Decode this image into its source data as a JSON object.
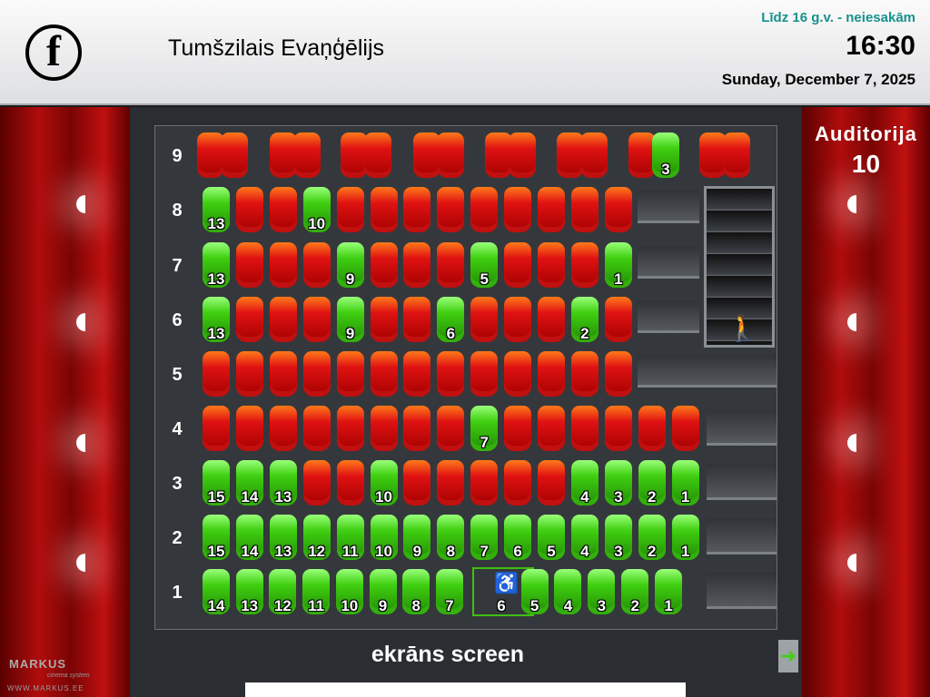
{
  "header": {
    "logo_letter": "f",
    "title": "Tumšzilais Evaņģēlijs",
    "age_rating": "Līdz 16 g.v. -  neiesakām",
    "time": "16:30",
    "date": "Sunday, December 7, 2025"
  },
  "auditorium": {
    "label": "Auditorija",
    "number": "10"
  },
  "screen_label": "ekrāns screen",
  "branding": {
    "name": "MARKUS",
    "sub": "cinema system",
    "url": "WWW.MARKUS.EE"
  },
  "colors": {
    "free": "#3fcf10",
    "taken": "#e01212"
  },
  "icons": {
    "wheelchair": "wheelchair-icon",
    "exit": "exit-person-icon",
    "next": "arrow-right-icon"
  },
  "rows": [
    {
      "label": "9",
      "pairs": [
        [
          "taken",
          "taken"
        ],
        [
          "taken",
          "taken"
        ],
        [
          "taken",
          "taken"
        ],
        [
          "taken",
          "taken"
        ],
        [
          "taken",
          "taken"
        ],
        [
          "taken",
          "taken"
        ],
        [
          "taken",
          {
            "s": "free",
            "n": "3"
          }
        ],
        [
          "taken",
          "taken"
        ]
      ]
    },
    {
      "label": "8",
      "seats": [
        {
          "s": "free",
          "n": "13"
        },
        "taken",
        "taken",
        {
          "s": "free",
          "n": "10"
        },
        "taken",
        "taken",
        "taken",
        "taken",
        "taken",
        "taken",
        "taken",
        "taken",
        "taken"
      ]
    },
    {
      "label": "7",
      "seats": [
        {
          "s": "free",
          "n": "13"
        },
        "taken",
        "taken",
        "taken",
        {
          "s": "free",
          "n": "9"
        },
        "taken",
        "taken",
        "taken",
        {
          "s": "free",
          "n": "5"
        },
        "taken",
        "taken",
        "taken",
        {
          "s": "free",
          "n": "1"
        }
      ]
    },
    {
      "label": "6",
      "seats": [
        {
          "s": "free",
          "n": "13"
        },
        "taken",
        "taken",
        "taken",
        {
          "s": "free",
          "n": "9"
        },
        "taken",
        "taken",
        {
          "s": "free",
          "n": "6"
        },
        "taken",
        "taken",
        "taken",
        {
          "s": "free",
          "n": "2"
        },
        "taken"
      ]
    },
    {
      "label": "5",
      "seats": [
        "taken",
        "taken",
        "taken",
        "taken",
        "taken",
        "taken",
        "taken",
        "taken",
        "taken",
        "taken",
        "taken",
        "taken",
        "taken"
      ]
    },
    {
      "label": "4",
      "seats": [
        "taken",
        "taken",
        "taken",
        "taken",
        "taken",
        "taken",
        "taken",
        "taken",
        {
          "s": "free",
          "n": "7"
        },
        "taken",
        "taken",
        "taken",
        "taken",
        "taken",
        "taken"
      ]
    },
    {
      "label": "3",
      "seats": [
        {
          "s": "free",
          "n": "15"
        },
        {
          "s": "free",
          "n": "14"
        },
        {
          "s": "free",
          "n": "13"
        },
        "taken",
        "taken",
        {
          "s": "free",
          "n": "10"
        },
        "taken",
        "taken",
        "taken",
        "taken",
        "taken",
        {
          "s": "free",
          "n": "4"
        },
        {
          "s": "free",
          "n": "3"
        },
        {
          "s": "free",
          "n": "2"
        },
        {
          "s": "free",
          "n": "1"
        }
      ]
    },
    {
      "label": "2",
      "seats": [
        {
          "s": "free",
          "n": "15"
        },
        {
          "s": "free",
          "n": "14"
        },
        {
          "s": "free",
          "n": "13"
        },
        {
          "s": "free",
          "n": "12"
        },
        {
          "s": "free",
          "n": "11"
        },
        {
          "s": "free",
          "n": "10"
        },
        {
          "s": "free",
          "n": "9"
        },
        {
          "s": "free",
          "n": "8"
        },
        {
          "s": "free",
          "n": "7"
        },
        {
          "s": "free",
          "n": "6"
        },
        {
          "s": "free",
          "n": "5"
        },
        {
          "s": "free",
          "n": "4"
        },
        {
          "s": "free",
          "n": "3"
        },
        {
          "s": "free",
          "n": "2"
        },
        {
          "s": "free",
          "n": "1"
        }
      ]
    },
    {
      "label": "1",
      "seats": [
        {
          "s": "free",
          "n": "14"
        },
        {
          "s": "free",
          "n": "13"
        },
        {
          "s": "free",
          "n": "12"
        },
        {
          "s": "free",
          "n": "11"
        },
        {
          "s": "free",
          "n": "10"
        },
        {
          "s": "free",
          "n": "9"
        },
        {
          "s": "free",
          "n": "8"
        },
        {
          "s": "free",
          "n": "7"
        },
        {
          "s": "wheelchair",
          "n": "6"
        },
        {
          "s": "free",
          "n": "5"
        },
        {
          "s": "free",
          "n": "4"
        },
        {
          "s": "free",
          "n": "3"
        },
        {
          "s": "free",
          "n": "2"
        },
        {
          "s": "free",
          "n": "1"
        }
      ]
    }
  ]
}
